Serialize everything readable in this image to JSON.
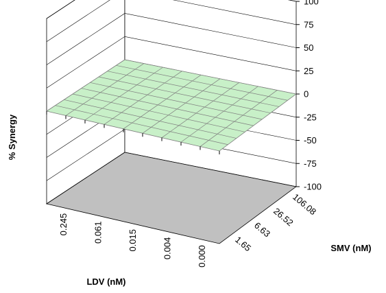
{
  "chart_data": {
    "type": "surface3d",
    "zlabel": "% Synergy",
    "xlabel": "LDV (nM)",
    "ylabel": "SMV (nM)",
    "z_ticks": [
      "100",
      "75",
      "50",
      "25",
      "0",
      "-25",
      "-50",
      "-75",
      "-100"
    ],
    "zlim": [
      -100,
      100
    ],
    "ldv_tick_labels": [
      "0.245",
      "0.061",
      "0.015",
      "0.004",
      "0.000"
    ],
    "smv_tick_labels": [
      "1.65",
      "6.63",
      "26.52",
      "106.08"
    ],
    "surface_value": 0,
    "surface_grid": [
      9,
      9
    ],
    "colors": {
      "surface": "#c8f0c8",
      "surface_lines": "#7f7f7f",
      "floor": "#c0c0c0",
      "walls": "#ffffff",
      "gridlines": "#000000"
    }
  }
}
